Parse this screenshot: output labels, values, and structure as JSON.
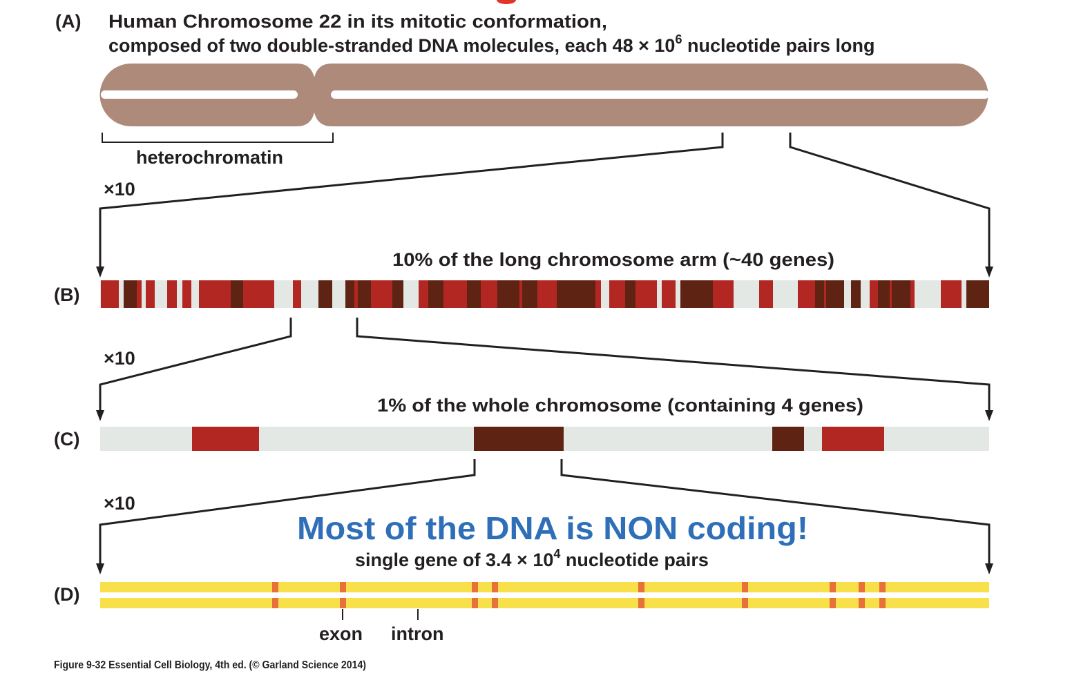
{
  "panels": {
    "a": {
      "label": "(A)",
      "title_line1": "Human Chromosome 22 in its mitotic conformation,",
      "title_line2_pre": "composed of two double-stranded DNA molecules, each 48 × 10",
      "title_line2_sup": "6",
      "title_line2_post": " nucleotide pairs long",
      "heterochromatin": "heterochromatin"
    },
    "b": {
      "label": "(B)",
      "caption": "10% of the long chromosome arm (~40 genes)"
    },
    "c": {
      "label": "(C)",
      "caption": "1% of the whole chromosome (containing 4 genes)"
    },
    "d": {
      "label": "(D)",
      "caption_pre": "single gene of 3.4 × 10",
      "caption_sup": "4",
      "caption_post": " nucleotide pairs",
      "exon": "exon",
      "intron": "intron"
    }
  },
  "zoom_labels": [
    "×10",
    "×10",
    "×10"
  ],
  "headline": "Most of the DNA is NON coding!",
  "figure_credit": "Figure 9-32  Essential Cell Biology, 4th ed. (© Garland Science 2014)",
  "colors": {
    "chromosome": "#ae8a7b",
    "gene_red": "#b22722",
    "gene_dark": "#5e2312",
    "spacer": "#e4e8e5",
    "yellow": "#f8e04a",
    "exon": "#e8703a",
    "headline": "#2f6fb8"
  }
}
